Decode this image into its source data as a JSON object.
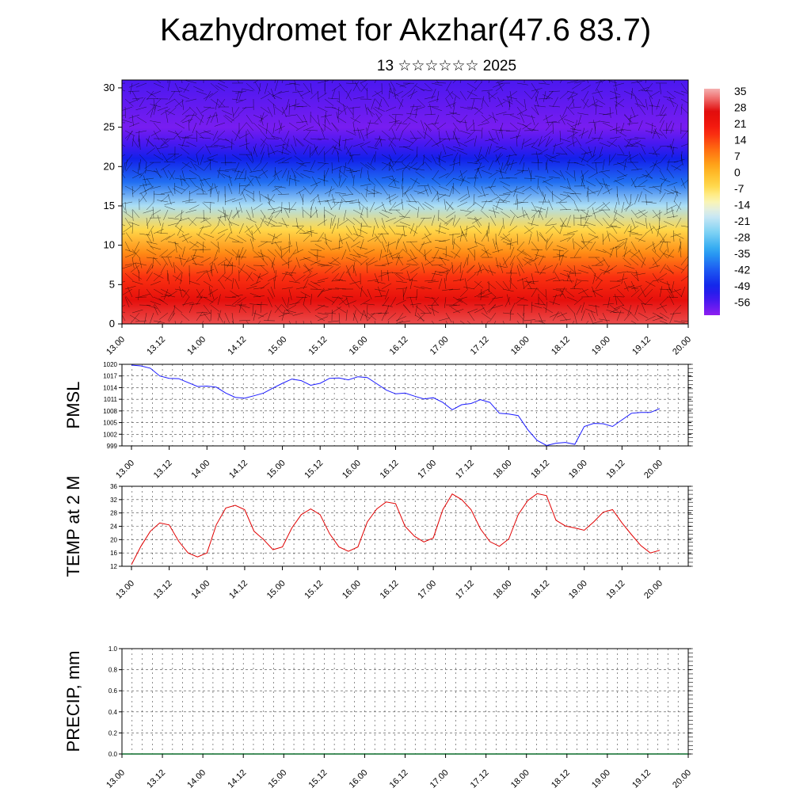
{
  "page": {
    "title": "Kazhydromet for Akzhar(47.6 83.7)",
    "subtitle": "13 ☆☆☆☆☆☆ 2025"
  },
  "colors": {
    "pmsl_line": "#1a1aff",
    "temp_line": "#e00000",
    "precip_line": "#0a6b2a",
    "grid": "#000000"
  },
  "chart_data": [
    {
      "id": "cross-section",
      "type": "heatmap",
      "title": "",
      "xlabel": "",
      "ylabel": "",
      "x_ticks": [
        "13.00",
        "13.12",
        "14.00",
        "14.12",
        "15.00",
        "15.12",
        "16.00",
        "16.12",
        "17.00",
        "17.12",
        "18.00",
        "18.12",
        "19.00",
        "19.12",
        "20.00"
      ],
      "y_ticks": [
        0,
        5,
        10,
        15,
        20,
        25,
        30
      ],
      "ylim": [
        0,
        31
      ],
      "colorbar_labels": [
        "35",
        "28",
        "21",
        "14",
        "7",
        "0",
        "-7",
        "-14",
        "-21",
        "-28",
        "-35",
        "-42",
        "-49",
        "-56"
      ],
      "colorbar_range": [
        -60,
        38
      ],
      "overlay": "wind barbs",
      "temperature_profile": {
        "height": [
          0,
          3,
          6,
          9,
          12,
          15,
          18,
          21,
          23,
          25,
          28,
          31
        ],
        "value": [
          32,
          26,
          18,
          8,
          -4,
          -20,
          -38,
          -48,
          -54,
          -58,
          -56,
          -54
        ]
      }
    },
    {
      "id": "pmsl",
      "type": "line",
      "ylabel": "PMSL",
      "y_ticks": [
        999,
        1002,
        1005,
        1008,
        1011,
        1014,
        1017,
        1020
      ],
      "ylim": [
        999,
        1020
      ],
      "x_ticks": [
        "13.00",
        "13.12",
        "14.00",
        "14.12",
        "15.00",
        "15.12",
        "16.00",
        "16.12",
        "17.00",
        "17.12",
        "18.00",
        "18.12",
        "19.00",
        "19.12",
        "20.00"
      ],
      "series": [
        {
          "values": [
            1019.8,
            1019.6,
            1019.0,
            1017.0,
            1016.4,
            1016.3,
            1015.3,
            1014.3,
            1014.4,
            1014.1,
            1012.6,
            1011.5,
            1011.3,
            1011.9,
            1012.6,
            1013.9,
            1015.1,
            1016.2,
            1015.8,
            1014.6,
            1015.1,
            1016.4,
            1016.5,
            1016.0,
            1016.8,
            1016.6,
            1015.0,
            1013.4,
            1012.4,
            1012.6,
            1011.8,
            1011.1,
            1011.4,
            1010.2,
            1008.3,
            1009.6,
            1009.9,
            1010.9,
            1010.2,
            1007.4,
            1007.2,
            1006.8,
            1003.2,
            1000.4,
            999.1,
            999.7,
            999.9,
            999.4,
            1004.0,
            1004.8,
            1004.7,
            1004.0,
            1005.7,
            1007.4,
            1007.6,
            1007.6,
            1008.6
          ]
        }
      ]
    },
    {
      "id": "temp",
      "type": "line",
      "ylabel": "TEMP at 2 M",
      "y_ticks": [
        12,
        16,
        20,
        24,
        28,
        32,
        36
      ],
      "ylim": [
        12,
        36
      ],
      "x_ticks": [
        "13.00",
        "13.12",
        "14.00",
        "14.12",
        "15.00",
        "15.12",
        "16.00",
        "16.12",
        "17.00",
        "17.12",
        "18.00",
        "18.12",
        "19.00",
        "19.12",
        "20.00"
      ],
      "series": [
        {
          "values": [
            12.5,
            18.0,
            22.5,
            25.0,
            24.4,
            19.5,
            16.0,
            14.8,
            16.0,
            24.5,
            29.5,
            30.3,
            29.0,
            22.5,
            20.0,
            17.0,
            17.8,
            23.5,
            27.5,
            29.2,
            27.5,
            21.8,
            17.8,
            16.5,
            17.8,
            25.3,
            29.2,
            31.3,
            30.8,
            24.0,
            21.0,
            19.3,
            20.5,
            29.0,
            33.7,
            32.0,
            29.0,
            23.2,
            19.4,
            18.0,
            20.2,
            27.5,
            31.7,
            33.8,
            33.2,
            25.8,
            24.1,
            23.5,
            22.8,
            25.3,
            28.2,
            29.0,
            25.0,
            21.5,
            18.2,
            16.0,
            16.8
          ]
        }
      ]
    },
    {
      "id": "precip",
      "type": "line",
      "ylabel": "PRECIP, mm",
      "y_ticks": [
        "0.0",
        "0.2",
        "0.4",
        "0.6",
        "0.8",
        "1.0"
      ],
      "ylim": [
        0,
        1
      ],
      "x_ticks": [
        "13.00",
        "13.12",
        "14.00",
        "14.12",
        "15.00",
        "15.12",
        "16.00",
        "16.12",
        "17.00",
        "17.12",
        "18.00",
        "18.12",
        "19.00",
        "19.12",
        "20.00"
      ],
      "series": [
        {
          "values": [
            0,
            0,
            0,
            0,
            0,
            0,
            0,
            0,
            0,
            0,
            0,
            0,
            0,
            0,
            0,
            0,
            0,
            0,
            0,
            0,
            0,
            0,
            0,
            0,
            0,
            0,
            0,
            0,
            0,
            0,
            0,
            0,
            0,
            0,
            0,
            0,
            0,
            0,
            0,
            0,
            0,
            0,
            0,
            0,
            0,
            0,
            0,
            0,
            0,
            0,
            0,
            0,
            0,
            0,
            0,
            0,
            0
          ]
        }
      ]
    }
  ]
}
